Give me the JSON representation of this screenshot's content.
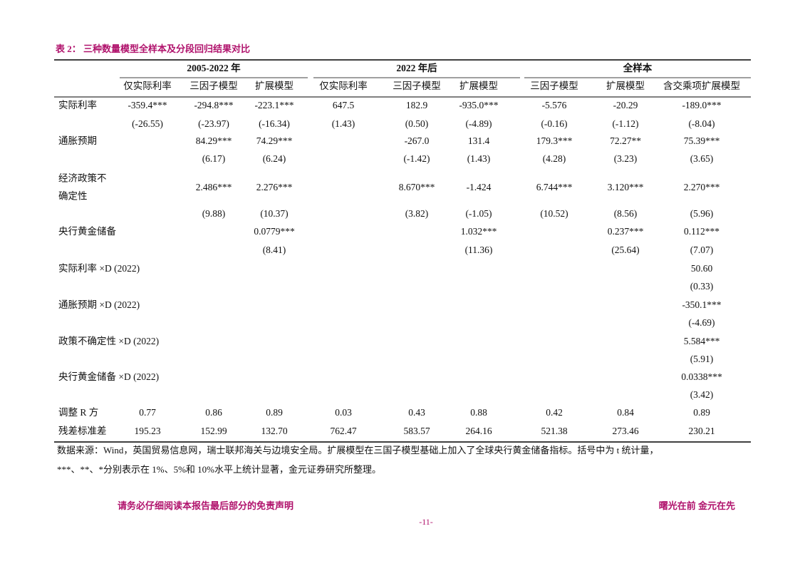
{
  "header": {
    "title": "表 2：  三种数量模型全样本及分段回归结果对比"
  },
  "table": {
    "groups": [
      "2005-2022 年",
      "2022 年后",
      "全样本"
    ],
    "columns": [
      "仅实际利率",
      "三因子模型",
      "扩展模型",
      "仅实际利率",
      "三因子模型",
      "扩展模型",
      "三因子模型",
      "扩展模型",
      "含交乘项扩展模型"
    ],
    "rows": [
      {
        "label": [
          "实际利率"
        ],
        "cells": [
          "-359.4***",
          "-294.8***",
          "-223.1***",
          "647.5",
          "182.9",
          "-935.0***",
          "-5.576",
          "-20.29",
          "-189.0***"
        ]
      },
      {
        "cells": [
          "(-26.55)",
          "(-23.97)",
          "(-16.34)",
          "(1.43)",
          "(0.50)",
          "(-4.89)",
          "(-0.16)",
          "(-1.12)",
          "(-8.04)"
        ]
      },
      {
        "label": [
          "通胀预期"
        ],
        "cells": [
          null,
          "84.29***",
          "74.29***",
          null,
          "-267.0",
          "131.4",
          "179.3***",
          "72.27**",
          "75.39***"
        ]
      },
      {
        "cells": [
          null,
          "(6.17)",
          "(6.24)",
          null,
          "(-1.42)",
          "(1.43)",
          "(4.28)",
          "(3.23)",
          "(3.65)"
        ]
      },
      {
        "label": [
          "经济政策不",
          "确定性"
        ],
        "cells": [
          null,
          "2.486***",
          "2.276***",
          null,
          "8.670***",
          "-1.424",
          "6.744***",
          "3.120***",
          "2.270***"
        ]
      },
      {
        "cells": [
          null,
          "(9.88)",
          "(10.37)",
          null,
          "(3.82)",
          "(-1.05)",
          "(10.52)",
          "(8.56)",
          "(5.96)"
        ]
      },
      {
        "label": [
          "央行黄金储备"
        ],
        "cells": [
          null,
          null,
          "0.0779***",
          null,
          null,
          "1.032***",
          null,
          "0.237***",
          "0.112***"
        ]
      },
      {
        "cells": [
          null,
          null,
          "(8.41)",
          null,
          null,
          "(11.36)",
          null,
          "(25.64)",
          "(7.07)"
        ]
      },
      {
        "label": [
          "实际利率 ×D (2022)"
        ],
        "cells": [
          null,
          null,
          null,
          null,
          null,
          null,
          null,
          null,
          "50.60"
        ]
      },
      {
        "cells": [
          null,
          null,
          null,
          null,
          null,
          null,
          null,
          null,
          "(0.33)"
        ]
      },
      {
        "label": [
          "通胀预期 ×D (2022)"
        ],
        "cells": [
          null,
          null,
          null,
          null,
          null,
          null,
          null,
          null,
          "-350.1***"
        ]
      },
      {
        "cells": [
          null,
          null,
          null,
          null,
          null,
          null,
          null,
          null,
          "(-4.69)"
        ]
      },
      {
        "label": [
          "政策不确定性 ×D (2022)"
        ],
        "cells": [
          null,
          null,
          null,
          null,
          null,
          null,
          null,
          null,
          "5.584***"
        ]
      },
      {
        "cells": [
          null,
          null,
          null,
          null,
          null,
          null,
          null,
          null,
          "(5.91)"
        ]
      },
      {
        "label": [
          "央行黄金储备 ×D (2022)"
        ],
        "cells": [
          null,
          null,
          null,
          null,
          null,
          null,
          null,
          null,
          "0.0338***"
        ]
      },
      {
        "cells": [
          null,
          null,
          null,
          null,
          null,
          null,
          null,
          null,
          "(3.42)"
        ]
      },
      {
        "label": [
          "调整 R 方"
        ],
        "cells": [
          "0.77",
          "0.86",
          "0.89",
          "0.03",
          "0.43",
          "0.88",
          "0.42",
          "0.84",
          "0.89"
        ]
      },
      {
        "label": [
          "残差标准差"
        ],
        "cells": [
          "195.23",
          "152.99",
          "132.70",
          "762.47",
          "583.57",
          "264.16",
          "521.38",
          "273.46",
          "230.21"
        ]
      }
    ]
  },
  "notes": [
    "数据来源：Wind，英国贸易信息网，瑞士联邦海关与边境安全局。扩展模型在三国子模型基础上加入了全球央行黄金储备指标。括号中为 t 统计量，",
    "***、**、*分别表示在 1%、5%和 10%水平上统计显著，金元证券研究所整理。"
  ],
  "footer": {
    "disclaimer": "请务必仔细阅读本报告最后部分的免责声明",
    "slogan": "曙光在前  金元在先",
    "page": "-11-"
  }
}
